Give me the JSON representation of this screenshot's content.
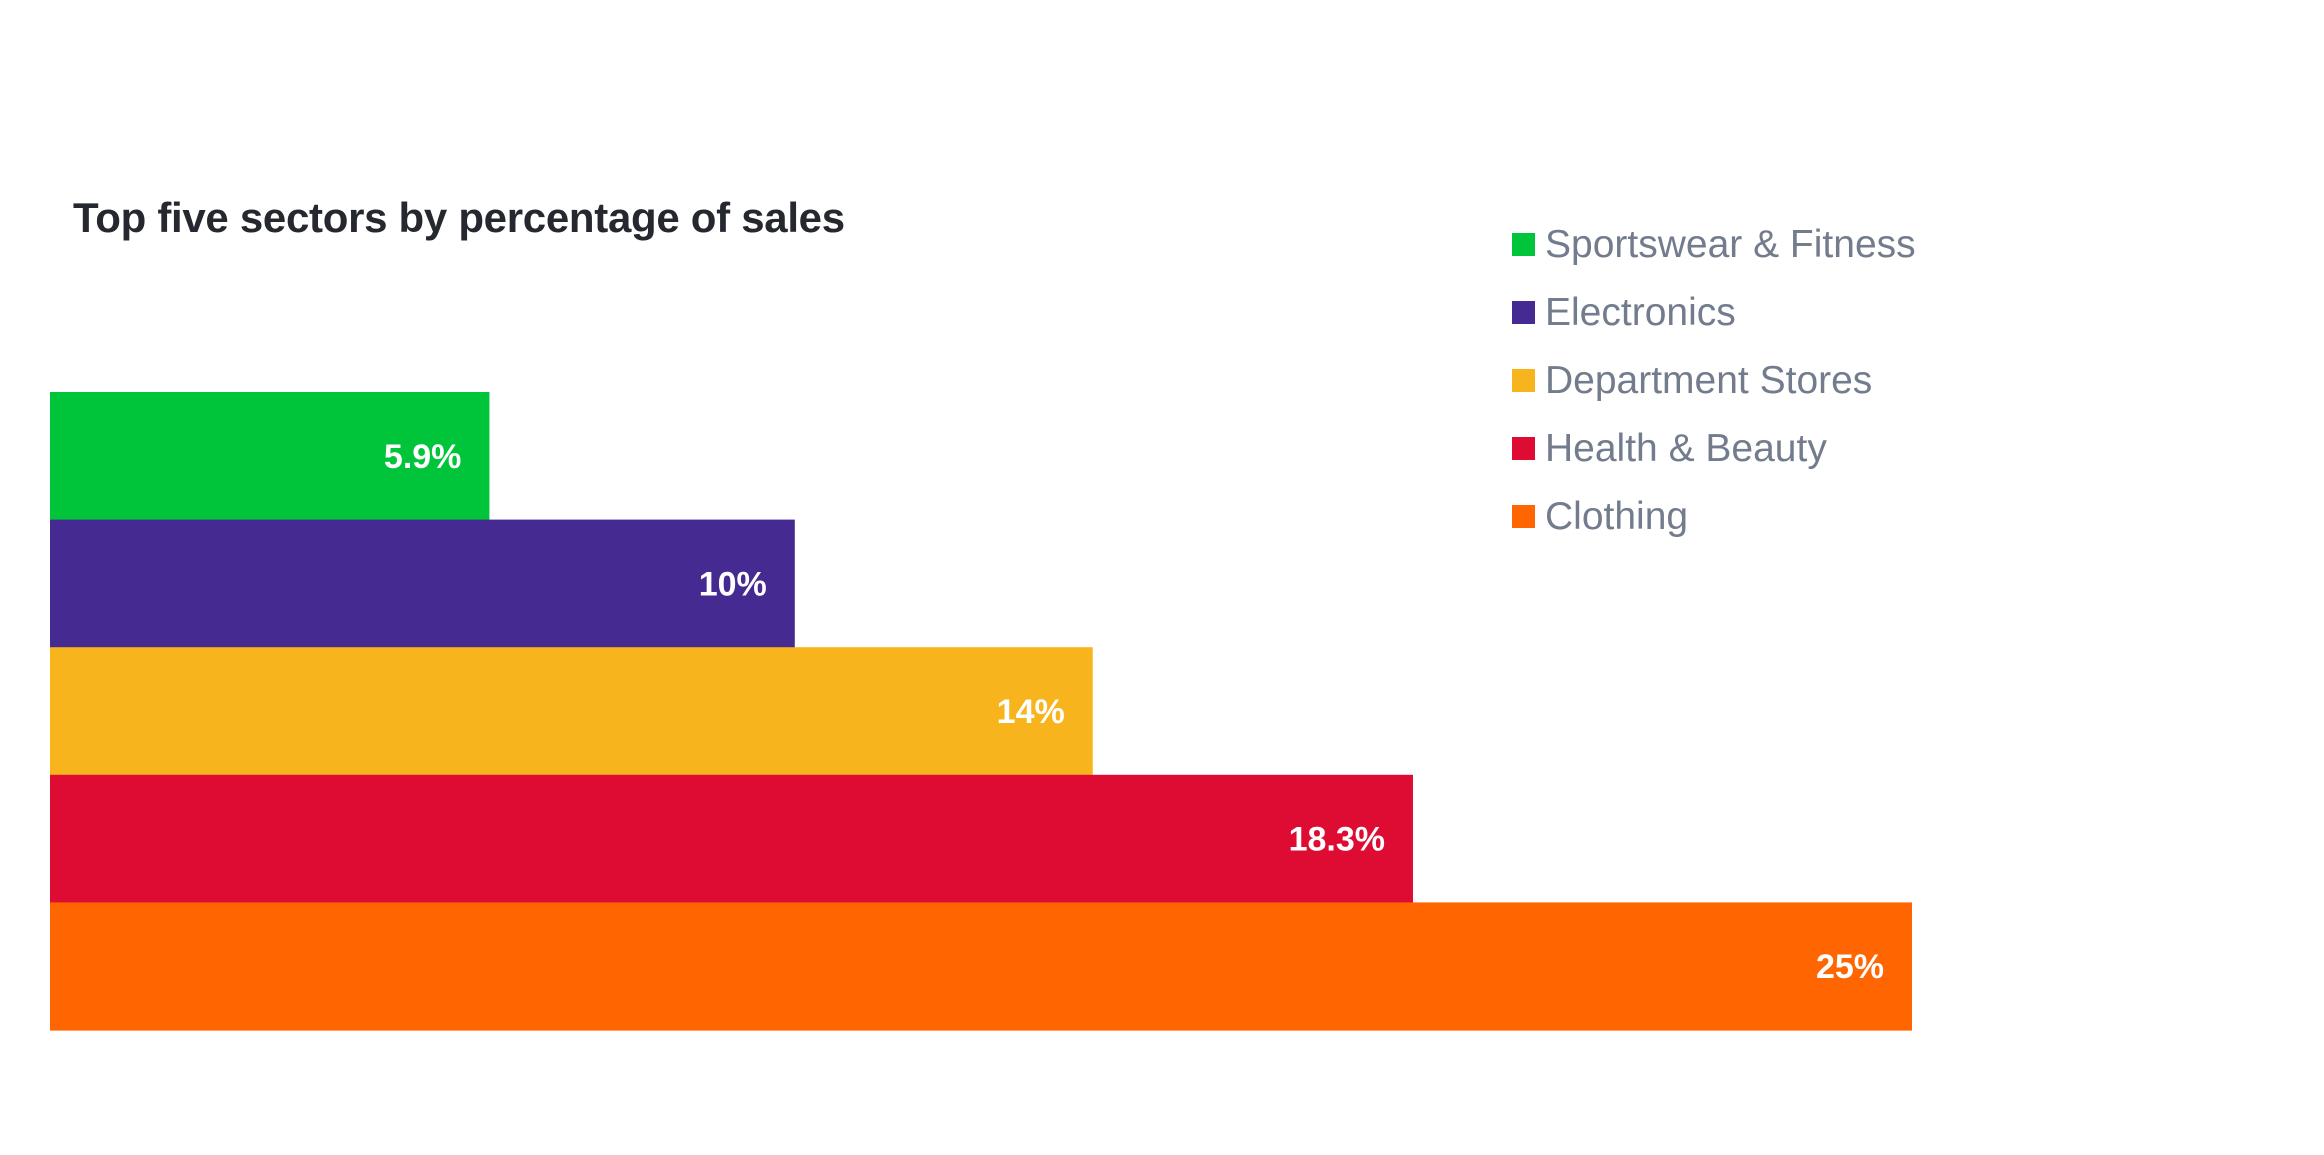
{
  "chart_data": {
    "type": "bar",
    "orientation": "horizontal",
    "title": "Top five sectors by percentage of sales",
    "xlabel": "",
    "ylabel": "",
    "xlim": [
      0,
      25
    ],
    "grid": false,
    "legend_position": "top-right",
    "categories": [
      "Sportswear & Fitness",
      "Electronics",
      "Department Stores",
      "Health & Beauty",
      "Clothing"
    ],
    "values": [
      5.9,
      10,
      14,
      18.3,
      25
    ],
    "data_labels": [
      "5.9%",
      "10%",
      "14%",
      "18.3%",
      "25%"
    ],
    "colors": [
      "#00c43a",
      "#452b91",
      "#f8b41c",
      "#de0b33",
      "#ff6602"
    ]
  }
}
